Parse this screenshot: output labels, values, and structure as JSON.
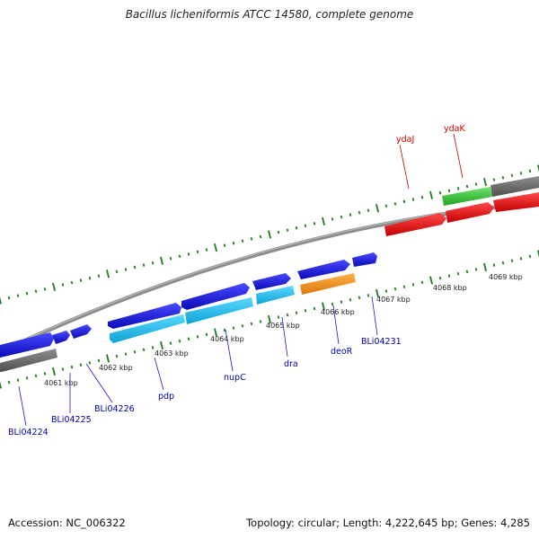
{
  "title": "Bacillus licheniformis ATCC 14580, complete genome",
  "footer": {
    "accession": "Accession: NC_006322",
    "summary": "Topology: circular; Length: 4,222,645 bp; Genes: 4,285"
  },
  "kbp_labels": [
    "4061 kbp",
    "4062 kbp",
    "4063 kbp",
    "4064 kbp",
    "4065 kbp",
    "4066 kbp",
    "4067 kbp",
    "4068 kbp",
    "4069 kbp"
  ],
  "gene_labels": [
    {
      "id": "ydaJ",
      "text": "ydaJ",
      "color": "#cc0000"
    },
    {
      "id": "ydaK",
      "text": "ydaK",
      "color": "#cc0000"
    },
    {
      "id": "BLi04224",
      "text": "BLi04224",
      "color": "#0000aa"
    },
    {
      "id": "BLi04225",
      "text": "BLi04225",
      "color": "#0000aa"
    },
    {
      "id": "BLi04226",
      "text": "BLi04226",
      "color": "#0000aa"
    },
    {
      "id": "pdp",
      "text": "pdp",
      "color": "#0000aa"
    },
    {
      "id": "nupC",
      "text": "nupC",
      "color": "#0000aa"
    },
    {
      "id": "dra",
      "text": "dra",
      "color": "#0000aa"
    },
    {
      "id": "deoR",
      "text": "deoR",
      "color": "#0000aa"
    },
    {
      "id": "BLi04231",
      "text": "BLi04231",
      "color": "#0000aa"
    }
  ],
  "colors": {
    "gene_blue": "#1a1ae6",
    "gene_cyan": "#19c2f0",
    "gene_orange": "#f7931e",
    "gene_red": "#ee1111",
    "gene_green": "#33cc33",
    "gene_grey": "#6e6e6e",
    "backbone": "#8c8c8c",
    "tick": "#1f7a1f"
  }
}
